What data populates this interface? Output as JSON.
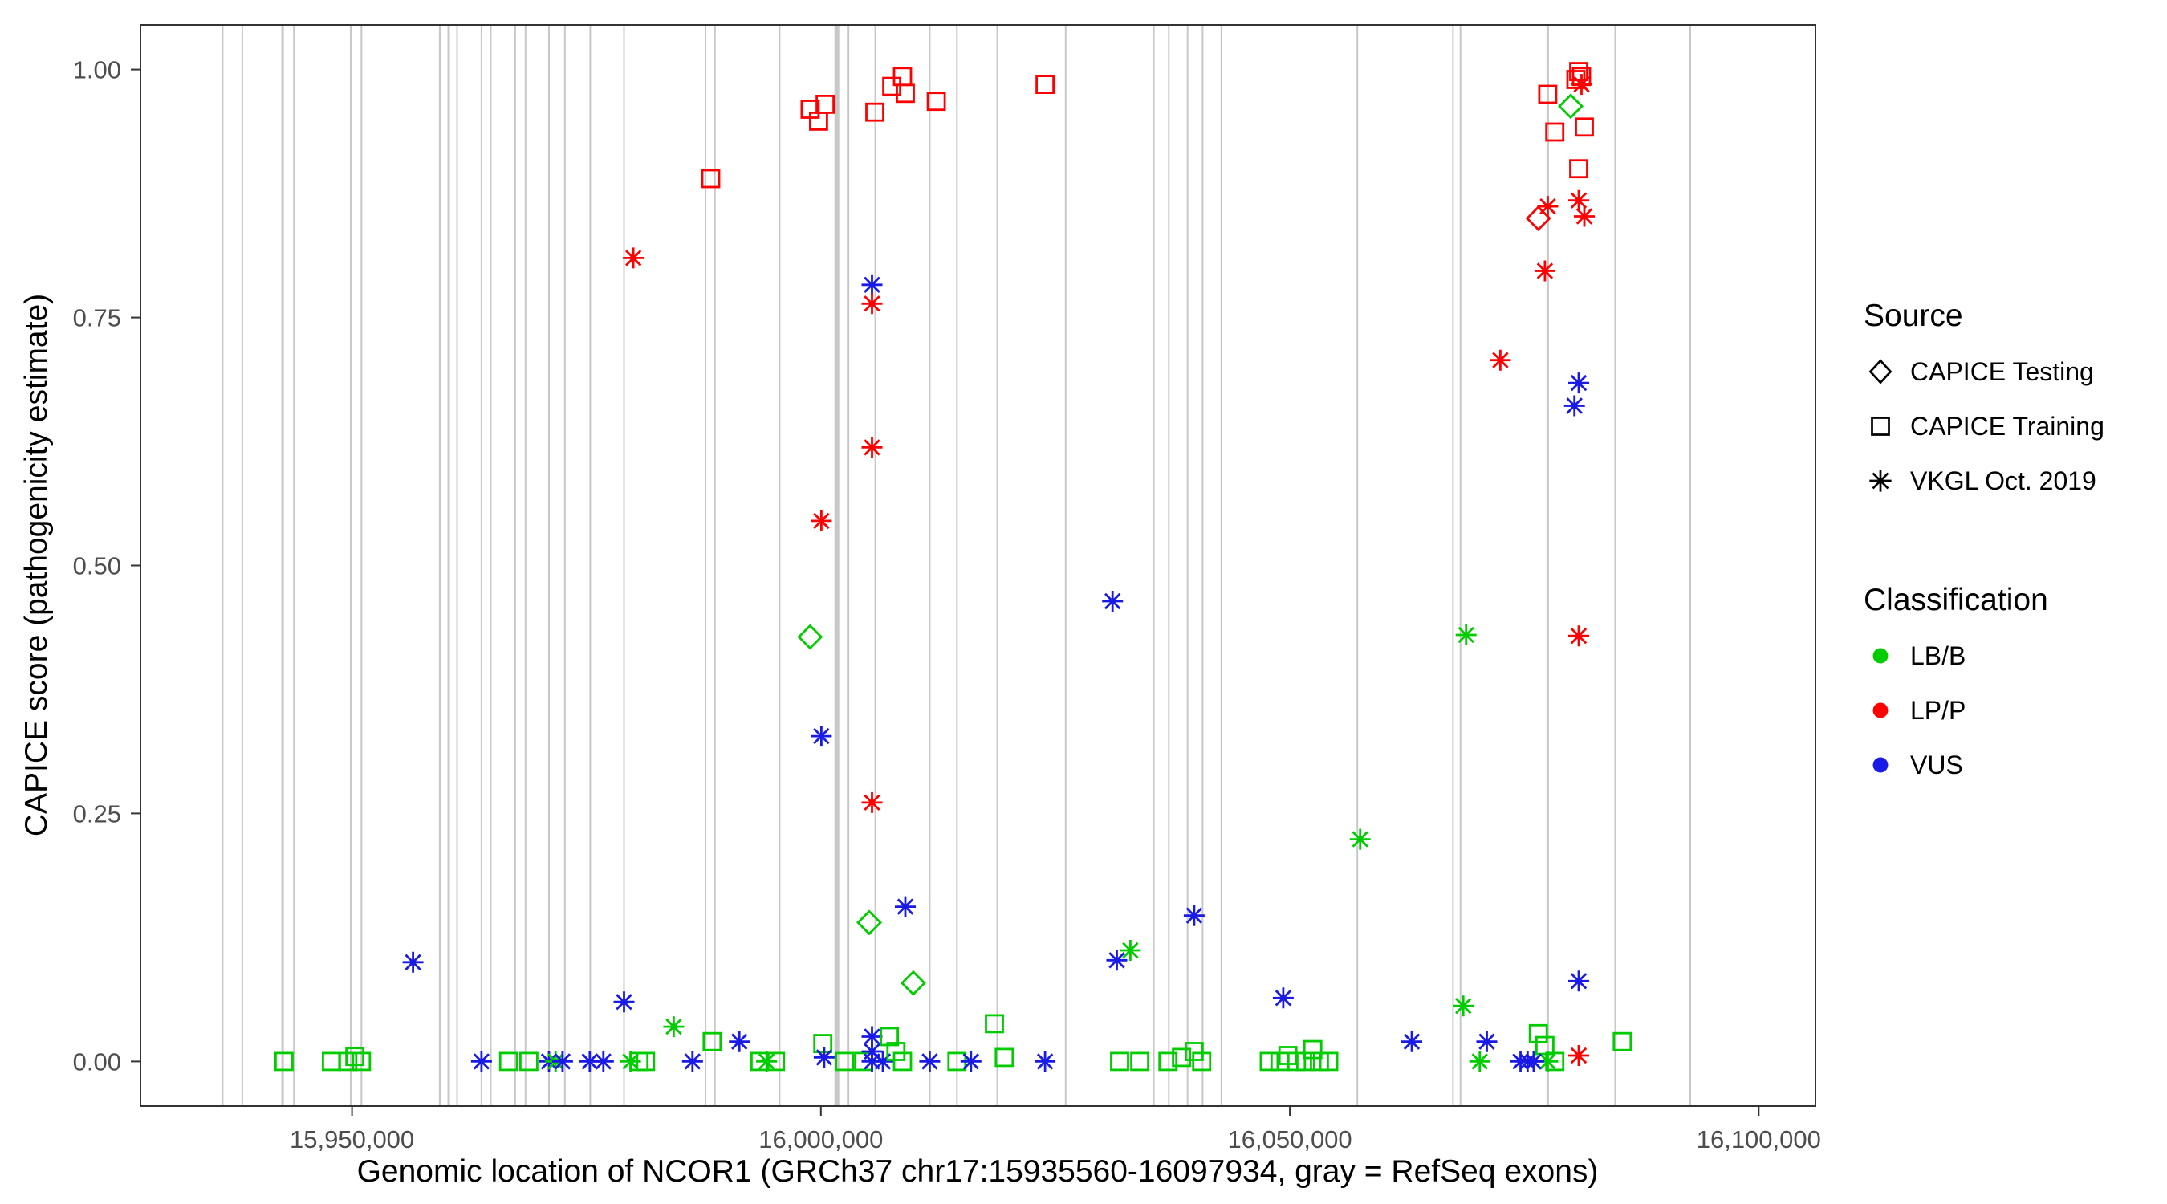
{
  "chart_data": {
    "type": "scatter",
    "title": "",
    "xlabel": "Genomic location of NCOR1 (GRCh37 chr17:15935560-16097934, gray = RefSeq exons)",
    "ylabel": "CAPICE score (pathogenicity estimate)",
    "xlim": [
      15927440,
      16106050
    ],
    "ylim": [
      -0.045,
      1.045
    ],
    "grid": false,
    "legend_position": "right",
    "x_ticks": [
      {
        "value": 15950000,
        "label": "15,950,000"
      },
      {
        "value": 16000000,
        "label": "16,000,000"
      },
      {
        "value": 16050000,
        "label": "16,050,000"
      },
      {
        "value": 16100000,
        "label": "16,100,000"
      }
    ],
    "y_ticks": [
      {
        "value": 0.0,
        "label": "0.00"
      },
      {
        "value": 0.25,
        "label": "0.25"
      },
      {
        "value": 0.5,
        "label": "0.50"
      },
      {
        "value": 0.75,
        "label": "0.75"
      },
      {
        "value": 1.0,
        "label": "1.00"
      }
    ],
    "colors": {
      "exon": "#C8C8C8",
      "panel_border": "#333333",
      "tick": "#333333",
      "tick_label": "#4D4D4D"
    },
    "class_colors": {
      "LB/B": "#00CC00",
      "LP/P": "#FF0000",
      "VUS": "#1A1AE6"
    },
    "source_shapes": {
      "testing": "diamond",
      "training": "square",
      "vkgl": "asterisk"
    },
    "source_labels": {
      "testing": "CAPICE Testing",
      "training": "CAPICE Training",
      "vkgl": "VKGL Oct. 2019"
    },
    "exons": [
      {
        "x": 15936200,
        "w": 2
      },
      {
        "x": 15938300,
        "w": 2
      },
      {
        "x": 15942600,
        "w": 3
      },
      {
        "x": 15943800,
        "w": 2
      },
      {
        "x": 15949900,
        "w": 3
      },
      {
        "x": 15951000,
        "w": 2
      },
      {
        "x": 15959400,
        "w": 3
      },
      {
        "x": 15960300,
        "w": 3
      },
      {
        "x": 15961200,
        "w": 2
      },
      {
        "x": 15963800,
        "w": 2
      },
      {
        "x": 15964800,
        "w": 2
      },
      {
        "x": 15967400,
        "w": 2
      },
      {
        "x": 15968500,
        "w": 2
      },
      {
        "x": 15971000,
        "w": 2
      },
      {
        "x": 15972700,
        "w": 2
      },
      {
        "x": 15975400,
        "w": 2
      },
      {
        "x": 15979000,
        "w": 2
      },
      {
        "x": 15987700,
        "w": 2
      },
      {
        "x": 15988700,
        "w": 2
      },
      {
        "x": 15995600,
        "w": 2
      },
      {
        "x": 16001700,
        "w": 6
      },
      {
        "x": 16002900,
        "w": 3
      },
      {
        "x": 16005800,
        "w": 2
      },
      {
        "x": 16011600,
        "w": 2
      },
      {
        "x": 16014500,
        "w": 2
      },
      {
        "x": 16018800,
        "w": 2
      },
      {
        "x": 16026100,
        "w": 2
      },
      {
        "x": 16035500,
        "w": 2
      },
      {
        "x": 16037100,
        "w": 2
      },
      {
        "x": 16039100,
        "w": 2
      },
      {
        "x": 16040700,
        "w": 2
      },
      {
        "x": 16042700,
        "w": 2
      },
      {
        "x": 16057200,
        "w": 2
      },
      {
        "x": 16067400,
        "w": 2
      },
      {
        "x": 16068200,
        "w": 2
      },
      {
        "x": 16077500,
        "w": 3
      },
      {
        "x": 16084700,
        "w": 2
      },
      {
        "x": 16092700,
        "w": 2
      }
    ],
    "points_format": [
      "genomic_position",
      "capice_score",
      "source",
      "classification"
    ],
    "points": [
      [
        15942750,
        0.0,
        "training",
        "LB/B"
      ],
      [
        15947800,
        0.0,
        "training",
        "LB/B"
      ],
      [
        15949550,
        0.0,
        "training",
        "LB/B"
      ],
      [
        15950300,
        0.005,
        "training",
        "LB/B"
      ],
      [
        15951000,
        0.0,
        "training",
        "LB/B"
      ],
      [
        15956500,
        0.1,
        "vkgl",
        "VUS"
      ],
      [
        15963800,
        0.0,
        "vkgl",
        "VUS"
      ],
      [
        15966700,
        0.0,
        "training",
        "LB/B"
      ],
      [
        15968850,
        0.0,
        "training",
        "LB/B"
      ],
      [
        15971000,
        0.0,
        "vkgl",
        "VUS"
      ],
      [
        15971700,
        0.0,
        "vkgl",
        "LB/B"
      ],
      [
        15972450,
        0.0,
        "vkgl",
        "VUS"
      ],
      [
        15975350,
        0.0,
        "vkgl",
        "VUS"
      ],
      [
        15976800,
        0.0,
        "vkgl",
        "VUS"
      ],
      [
        15979000,
        0.06,
        "vkgl",
        "VUS"
      ],
      [
        15979700,
        0.0,
        "vkgl",
        "LB/B"
      ],
      [
        15980600,
        0.0,
        "training",
        "LB/B"
      ],
      [
        15981300,
        0.0,
        "training",
        "LB/B"
      ],
      [
        15980000,
        0.81,
        "vkgl",
        "LP/P"
      ],
      [
        15984300,
        0.035,
        "vkgl",
        "LB/B"
      ],
      [
        15986300,
        0.0,
        "vkgl",
        "VUS"
      ],
      [
        15988400,
        0.02,
        "training",
        "LB/B"
      ],
      [
        15988250,
        0.89,
        "training",
        "LP/P"
      ],
      [
        15991300,
        0.02,
        "vkgl",
        "VUS"
      ],
      [
        15993500,
        0.0,
        "training",
        "LB/B"
      ],
      [
        15994200,
        0.0,
        "vkgl",
        "LB/B"
      ],
      [
        15995150,
        0.0,
        "training",
        "LB/B"
      ],
      [
        15998850,
        0.96,
        "training",
        "LP/P"
      ],
      [
        16000450,
        0.965,
        "training",
        "LP/P"
      ],
      [
        15999750,
        0.948,
        "training",
        "LP/P"
      ],
      [
        16000050,
        0.545,
        "vkgl",
        "LP/P"
      ],
      [
        15998850,
        0.428,
        "testing",
        "LB/B"
      ],
      [
        16000050,
        0.328,
        "vkgl",
        "VUS"
      ],
      [
        16000200,
        0.018,
        "training",
        "LB/B"
      ],
      [
        16000350,
        0.004,
        "vkgl",
        "VUS"
      ],
      [
        16002500,
        0.0,
        "training",
        "LB/B"
      ],
      [
        16004550,
        0.0,
        "training",
        "LB/B"
      ],
      [
        16005750,
        0.957,
        "training",
        "LP/P"
      ],
      [
        16005450,
        0.783,
        "vkgl",
        "VUS"
      ],
      [
        16005450,
        0.764,
        "vkgl",
        "LP/P"
      ],
      [
        16005450,
        0.619,
        "vkgl",
        "LP/P"
      ],
      [
        16005450,
        0.261,
        "vkgl",
        "LP/P"
      ],
      [
        16005150,
        0.14,
        "testing",
        "LB/B"
      ],
      [
        16009000,
        0.156,
        "vkgl",
        "VUS"
      ],
      [
        16009850,
        0.079,
        "testing",
        "LB/B"
      ],
      [
        16005450,
        0.025,
        "vkgl",
        "VUS"
      ],
      [
        16005450,
        0.01,
        "vkgl",
        "VUS"
      ],
      [
        16005450,
        0.0,
        "vkgl",
        "VUS"
      ],
      [
        16006600,
        0.0,
        "vkgl",
        "VUS"
      ],
      [
        16007300,
        0.025,
        "training",
        "LB/B"
      ],
      [
        16008000,
        0.01,
        "training",
        "LB/B"
      ],
      [
        16008700,
        0.0,
        "training",
        "LB/B"
      ],
      [
        16007550,
        0.983,
        "training",
        "LP/P"
      ],
      [
        16008700,
        0.993,
        "training",
        "LP/P"
      ],
      [
        16009000,
        0.976,
        "training",
        "LP/P"
      ],
      [
        16012300,
        0.968,
        "training",
        "LP/P"
      ],
      [
        16011600,
        0.0,
        "vkgl",
        "VUS"
      ],
      [
        16014500,
        0.0,
        "training",
        "LB/B"
      ],
      [
        16016000,
        0.0,
        "vkgl",
        "VUS"
      ],
      [
        16018500,
        0.038,
        "training",
        "LB/B"
      ],
      [
        16019550,
        0.004,
        "training",
        "LB/B"
      ],
      [
        16023900,
        0.985,
        "training",
        "LP/P"
      ],
      [
        16023900,
        0.0,
        "vkgl",
        "VUS"
      ],
      [
        16031100,
        0.464,
        "vkgl",
        "VUS"
      ],
      [
        16031550,
        0.102,
        "vkgl",
        "VUS"
      ],
      [
        16033000,
        0.112,
        "vkgl",
        "LB/B"
      ],
      [
        16031850,
        0.0,
        "training",
        "LB/B"
      ],
      [
        16034000,
        0.0,
        "training",
        "LB/B"
      ],
      [
        16037000,
        0.0,
        "training",
        "LB/B"
      ],
      [
        16038450,
        0.004,
        "training",
        "LB/B"
      ],
      [
        16039800,
        0.147,
        "vkgl",
        "VUS"
      ],
      [
        16039800,
        0.01,
        "training",
        "LB/B"
      ],
      [
        16040600,
        0.0,
        "training",
        "LB/B"
      ],
      [
        16049300,
        0.064,
        "vkgl",
        "VUS"
      ],
      [
        16047800,
        0.0,
        "training",
        "LB/B"
      ],
      [
        16048950,
        0.0,
        "training",
        "LB/B"
      ],
      [
        16049800,
        0.006,
        "training",
        "LB/B"
      ],
      [
        16050700,
        0.0,
        "training",
        "LB/B"
      ],
      [
        16051700,
        0.0,
        "training",
        "LB/B"
      ],
      [
        16052450,
        0.012,
        "training",
        "LB/B"
      ],
      [
        16053150,
        0.0,
        "training",
        "LB/B"
      ],
      [
        16054150,
        0.0,
        "training",
        "LB/B"
      ],
      [
        16057500,
        0.224,
        "vkgl",
        "LB/B"
      ],
      [
        16063000,
        0.02,
        "vkgl",
        "VUS"
      ],
      [
        16068800,
        0.43,
        "vkgl",
        "LB/B"
      ],
      [
        16068500,
        0.056,
        "vkgl",
        "LB/B"
      ],
      [
        16070250,
        0.0,
        "vkgl",
        "LB/B"
      ],
      [
        16071000,
        0.02,
        "vkgl",
        "VUS"
      ],
      [
        16074600,
        0.0,
        "vkgl",
        "VUS"
      ],
      [
        16075350,
        0.0,
        "vkgl",
        "VUS"
      ],
      [
        16072450,
        0.707,
        "vkgl",
        "LP/P"
      ],
      [
        16076500,
        0.85,
        "testing",
        "LP/P"
      ],
      [
        16077500,
        0.862,
        "vkgl",
        "LP/P"
      ],
      [
        16077200,
        0.797,
        "vkgl",
        "LP/P"
      ],
      [
        16077500,
        0.975,
        "training",
        "LP/P"
      ],
      [
        16078250,
        0.937,
        "training",
        "LP/P"
      ],
      [
        16079950,
        0.963,
        "testing",
        "LB/B"
      ],
      [
        16080500,
        0.99,
        "training",
        "LP/P"
      ],
      [
        16080800,
        0.998,
        "training",
        "LP/P"
      ],
      [
        16081100,
        0.993,
        "training",
        "LP/P"
      ],
      [
        16081100,
        0.985,
        "vkgl",
        "LP/P"
      ],
      [
        16081400,
        0.942,
        "training",
        "LP/P"
      ],
      [
        16080800,
        0.9,
        "training",
        "LP/P"
      ],
      [
        16080800,
        0.868,
        "vkgl",
        "LP/P"
      ],
      [
        16081400,
        0.852,
        "vkgl",
        "LP/P"
      ],
      [
        16080800,
        0.684,
        "vkgl",
        "VUS"
      ],
      [
        16080350,
        0.661,
        "vkgl",
        "VUS"
      ],
      [
        16080800,
        0.429,
        "vkgl",
        "LP/P"
      ],
      [
        16080800,
        0.081,
        "vkgl",
        "VUS"
      ],
      [
        16080800,
        0.006,
        "vkgl",
        "LP/P"
      ],
      [
        16076500,
        0.028,
        "training",
        "LB/B"
      ],
      [
        16077200,
        0.016,
        "training",
        "LB/B"
      ],
      [
        16077500,
        0.0,
        "vkgl",
        "LB/B"
      ],
      [
        16078250,
        0.0,
        "training",
        "LB/B"
      ],
      [
        16076000,
        0.0,
        "vkgl",
        "VUS"
      ],
      [
        16085450,
        0.02,
        "training",
        "LB/B"
      ]
    ]
  },
  "legend": {
    "source_title": "Source",
    "source_items": [
      {
        "label": "CAPICE Testing",
        "shape": "diamond"
      },
      {
        "label": "CAPICE Training",
        "shape": "square"
      },
      {
        "label": "VKGL Oct. 2019",
        "shape": "asterisk"
      }
    ],
    "class_title": "Classification",
    "class_items": [
      {
        "label": "LB/B",
        "color": "#00CC00"
      },
      {
        "label": "LP/P",
        "color": "#FF0000"
      },
      {
        "label": "VUS",
        "color": "#1A1AE6"
      }
    ]
  }
}
